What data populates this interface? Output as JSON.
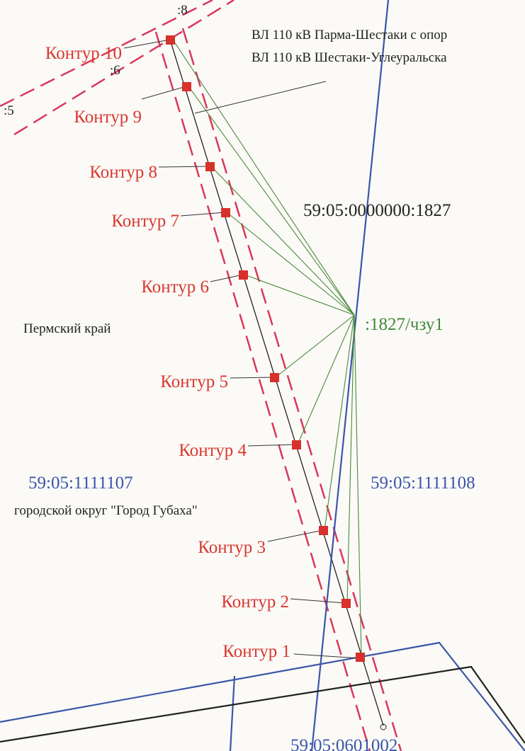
{
  "contours": [
    "Контур 1",
    "Контур 2",
    "Контур 3",
    "Контур 4",
    "Контур 5",
    "Контур 6",
    "Контур 7",
    "Контур 8",
    "Контур 9",
    "Контур 10"
  ],
  "points": [
    ":8",
    ":6",
    ":5"
  ],
  "lines": [
    "ВЛ 110 кВ Парма-Шестаки с опор",
    "ВЛ 110 кВ Шестаки-Углеуральска"
  ],
  "parcels": [
    "59:05:0000000:1827",
    ":1827/чзу1",
    "59:05:1111107",
    "59:05:1111108",
    "59:05:0601002"
  ],
  "region": "Пермский край",
  "district": "городской округ \"Город Губаха\""
}
